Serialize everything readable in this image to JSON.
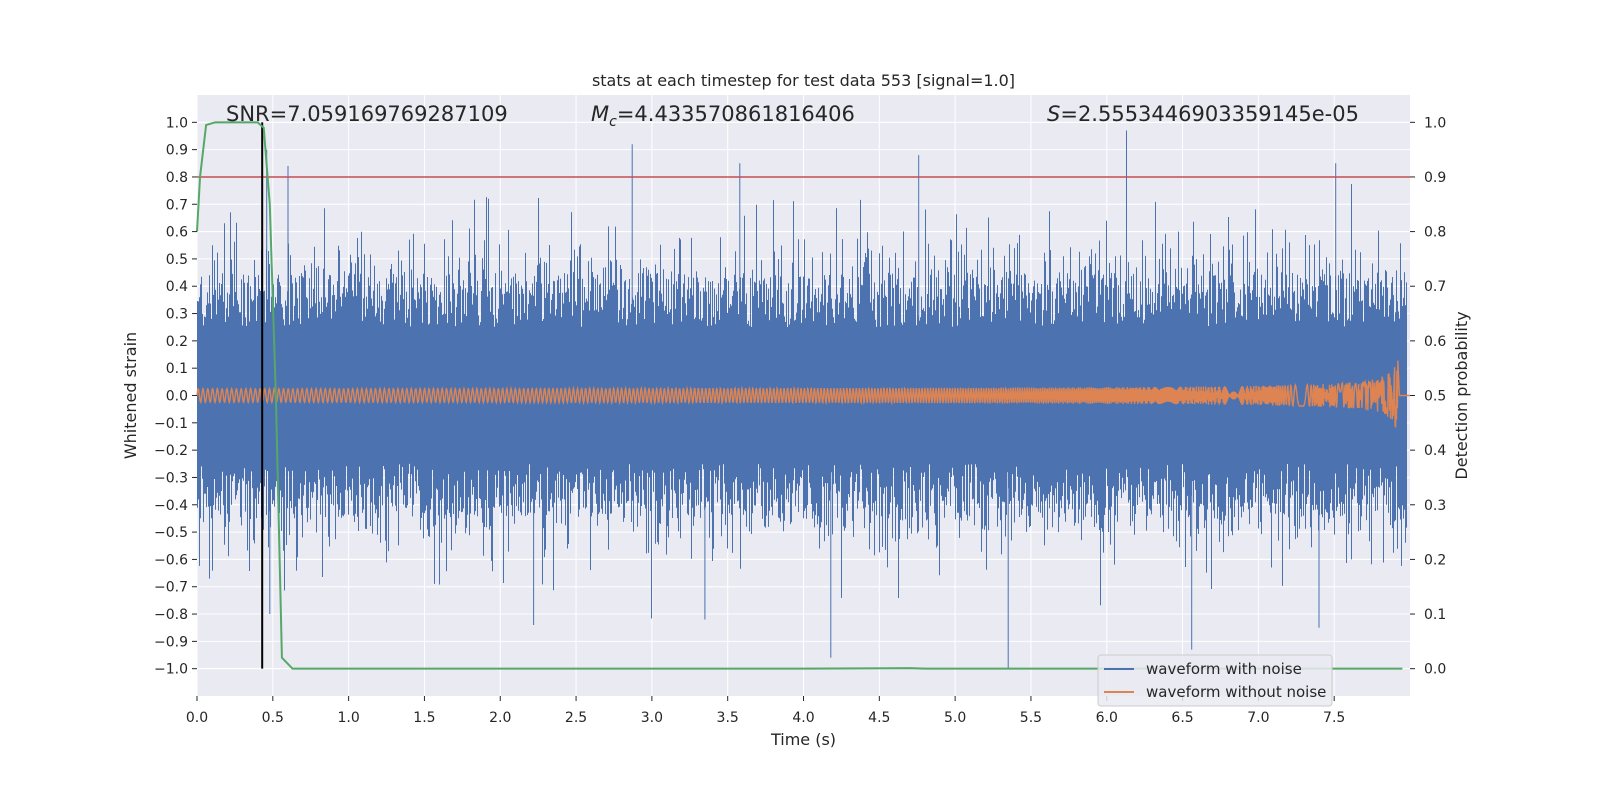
{
  "chart_data": {
    "type": "line",
    "title": "stats at each timestep for test data 553 [signal=1.0]",
    "xlabel": "Time (s)",
    "ylabel": "Whitened strain",
    "y2label": "Detection probability",
    "xlim": [
      0.0,
      8.0
    ],
    "ylim": [
      -1.1,
      1.1
    ],
    "y2lim": [
      -0.05,
      1.05
    ],
    "x_ticks": [
      0.0,
      0.5,
      1.0,
      1.5,
      2.0,
      2.5,
      3.0,
      3.5,
      4.0,
      4.5,
      5.0,
      5.5,
      6.0,
      6.5,
      7.0,
      7.5
    ],
    "x_tick_labels": [
      "0.0",
      "0.5",
      "1.0",
      "1.5",
      "2.0",
      "2.5",
      "3.0",
      "3.5",
      "4.0",
      "4.5",
      "5.0",
      "5.5",
      "6.0",
      "6.5",
      "7.0",
      "7.5"
    ],
    "y_ticks": [
      1.0,
      0.9,
      0.8,
      0.7,
      0.6,
      0.5,
      0.4,
      0.3,
      0.2,
      0.1,
      0.0,
      -0.1,
      -0.2,
      -0.3,
      -0.4,
      -0.5,
      -0.6,
      -0.7,
      -0.8,
      -0.9,
      -1.0
    ],
    "y_tick_labels": [
      "1.0",
      "0.9",
      "0.8",
      "0.7",
      "0.6",
      "0.5",
      "0.4",
      "0.3",
      "0.2",
      "0.1",
      "0.0",
      "−0.1",
      "−0.2",
      "−0.3",
      "−0.4",
      "−0.5",
      "−0.6",
      "−0.7",
      "−0.8",
      "−0.9",
      "−1.0"
    ],
    "y2_ticks": [
      1.0,
      0.9,
      0.8,
      0.7,
      0.6,
      0.5,
      0.4,
      0.3,
      0.2,
      0.1,
      0.0
    ],
    "y2_tick_labels": [
      "1.0",
      "0.9",
      "0.8",
      "0.7",
      "0.6",
      "0.5",
      "0.4",
      "0.3",
      "0.2",
      "0.1",
      "0.0"
    ],
    "annotations": {
      "snr": "SNR=7.059169769287109",
      "mc_symbol": "M",
      "mc_sub": "c",
      "mc_value": "=4.433570861816406",
      "s_symbol": "S",
      "s_value": "=2.5553446903359145e-05"
    },
    "threshold_y2": 0.9,
    "merger_time": 0.43,
    "series": [
      {
        "name": "waveform with noise",
        "color": "#4c72b0",
        "duration_s": 7.98,
        "envelope_typical": 0.4,
        "peak_max": 0.96,
        "peak_min": -1.0
      },
      {
        "name": "waveform without noise",
        "color": "#dd8452",
        "duration_s": 7.92,
        "amplitude_start": 0.02,
        "amplitude_end": 0.15
      }
    ],
    "probability": {
      "name": "detection probability",
      "color": "#55a868",
      "t": [
        0.0,
        0.02,
        0.06,
        0.12,
        0.2,
        0.3,
        0.4,
        0.44,
        0.48,
        0.52,
        0.56,
        0.63,
        0.8,
        2.0,
        4.0,
        4.7,
        4.8,
        6.0,
        7.0,
        7.95
      ],
      "p": [
        0.8,
        0.9,
        0.995,
        1.0,
        1.0,
        1.0,
        1.0,
        0.99,
        0.85,
        0.5,
        0.02,
        0.0,
        0.0,
        0.0,
        0.0,
        0.001,
        0.0,
        0.0,
        0.0,
        0.0
      ]
    },
    "legend_position": "lower-right",
    "colors": {
      "plot_bg": "#eaeaf2",
      "grid": "#ffffff",
      "threshold": "#c44e52",
      "merger_line": "#000000"
    }
  }
}
